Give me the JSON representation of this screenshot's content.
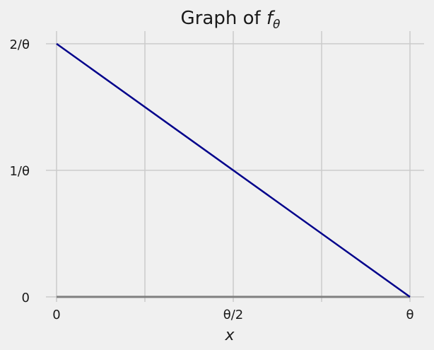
{
  "chart_data": {
    "type": "line",
    "title": {
      "prefix": "Graph of ",
      "func": "f",
      "sub": "θ"
    },
    "xlabel": "x",
    "ylabel": "",
    "xlim": [
      -0.03,
      1.04
    ],
    "ylim": [
      -0.04,
      2.1
    ],
    "x_ticks": [
      {
        "value": 0,
        "label": "0"
      },
      {
        "value": 0.5,
        "label": "θ/2"
      },
      {
        "value": 1,
        "label": "θ"
      }
    ],
    "x_grid": [
      0,
      0.25,
      0.5,
      0.75,
      1
    ],
    "y_ticks": [
      {
        "value": 0,
        "label": "0"
      },
      {
        "value": 1,
        "label": "1/θ"
      },
      {
        "value": 2,
        "label": "2/θ"
      }
    ],
    "grid": true,
    "series": [
      {
        "x": [
          0,
          1
        ],
        "y": [
          2,
          0
        ],
        "color": "#00008b"
      }
    ],
    "baseline": {
      "x": [
        0,
        1
      ],
      "y": [
        0,
        0
      ],
      "color": "#808080"
    }
  }
}
